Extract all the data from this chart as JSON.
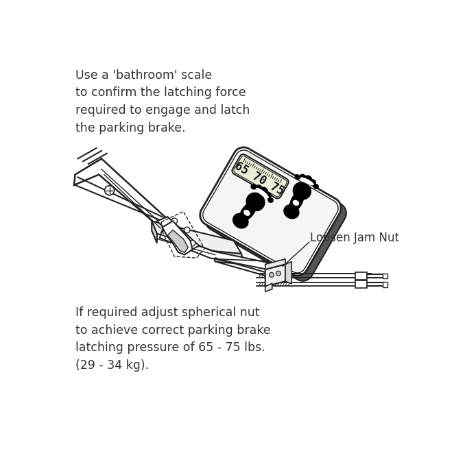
{
  "background_color": "#ffffff",
  "text_color": "#333333",
  "line_color": "#222222",
  "top_text": "Use a 'bathroom' scale\nto confirm the latching force\nrequired to engage and latch\nthe parking brake.",
  "bottom_text": "If required adjust spherical nut\nto achieve correct parking brake\nlatching pressure of 65 - 75 lbs.\n(29 - 34 kg).",
  "label_jam_nut": "Loosen Jam Nut",
  "scale_numbers": "65 70 75",
  "figsize": [
    6.78,
    6.84
  ],
  "dpi": 100
}
